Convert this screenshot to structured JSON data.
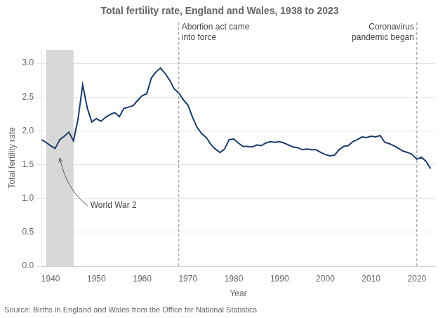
{
  "chart_data": {
    "type": "line",
    "title": "Total fertility rate, England and Wales, 1938 to 2023",
    "x_label": "Year",
    "y_label": "Total fertility rate",
    "source": "Source: Births in England and Wales from the Office for National Statistics",
    "color": "#1a3a6b",
    "x": [
      1938,
      1939,
      1940,
      1941,
      1942,
      1943,
      1944,
      1945,
      1946,
      1947,
      1948,
      1949,
      1950,
      1951,
      1952,
      1953,
      1954,
      1955,
      1956,
      1957,
      1958,
      1959,
      1960,
      1961,
      1962,
      1963,
      1964,
      1965,
      1966,
      1967,
      1968,
      1969,
      1970,
      1971,
      1972,
      1973,
      1974,
      1975,
      1976,
      1977,
      1978,
      1979,
      1980,
      1981,
      1982,
      1983,
      1984,
      1985,
      1986,
      1987,
      1988,
      1989,
      1990,
      1991,
      1992,
      1993,
      1994,
      1995,
      1996,
      1997,
      1998,
      1999,
      2000,
      2001,
      2002,
      2003,
      2004,
      2005,
      2006,
      2007,
      2008,
      2009,
      2010,
      2011,
      2012,
      2013,
      2014,
      2015,
      2016,
      2017,
      2018,
      2019,
      2020,
      2021,
      2022,
      2023
    ],
    "values": [
      1.87,
      1.83,
      1.78,
      1.74,
      1.87,
      1.92,
      1.98,
      1.85,
      2.18,
      2.68,
      2.34,
      2.13,
      2.18,
      2.14,
      2.2,
      2.24,
      2.27,
      2.21,
      2.33,
      2.35,
      2.37,
      2.45,
      2.52,
      2.55,
      2.78,
      2.87,
      2.93,
      2.85,
      2.75,
      2.62,
      2.56,
      2.46,
      2.38,
      2.2,
      2.05,
      1.96,
      1.9,
      1.8,
      1.73,
      1.68,
      1.73,
      1.87,
      1.88,
      1.82,
      1.77,
      1.77,
      1.76,
      1.79,
      1.78,
      1.82,
      1.84,
      1.83,
      1.84,
      1.82,
      1.79,
      1.76,
      1.75,
      1.72,
      1.73,
      1.72,
      1.72,
      1.68,
      1.65,
      1.63,
      1.64,
      1.72,
      1.77,
      1.78,
      1.84,
      1.87,
      1.91,
      1.9,
      1.92,
      1.91,
      1.93,
      1.83,
      1.81,
      1.78,
      1.74,
      1.7,
      1.68,
      1.65,
      1.58,
      1.61,
      1.55,
      1.44
    ],
    "xlim": [
      1938,
      2024
    ],
    "xticks": [
      1940,
      1950,
      1960,
      1970,
      1980,
      1990,
      2000,
      2010,
      2020
    ],
    "ylim": [
      0.0,
      3.2
    ],
    "yticks": [
      {
        "value": 0.0,
        "label": "0.0"
      },
      0.5,
      {
        "value": 1.0,
        "label": "1.0"
      },
      1.5,
      {
        "value": 2.0,
        "label": "2.0"
      },
      2.5,
      {
        "value": 3.0,
        "label": "3.0"
      }
    ],
    "grid": true,
    "annotations": [
      {
        "type": "span",
        "x": [
          1939,
          1945
        ],
        "color": "#d8d8d8",
        "text": "World War 2"
      },
      {
        "type": "vline",
        "x": 1968,
        "text": "Abortion act came\ninto force"
      },
      {
        "type": "vline",
        "x": 2020,
        "text": "Coronavirus\npandemic began"
      }
    ]
  }
}
